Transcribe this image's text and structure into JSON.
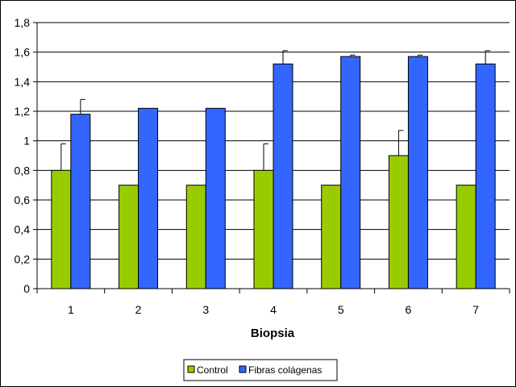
{
  "chart_data": {
    "type": "bar",
    "title": "",
    "xlabel": "Biopsia",
    "ylabel": "",
    "ylim": [
      0,
      1.8
    ],
    "yticks": [
      "0",
      "0,2",
      "0,4",
      "0,6",
      "0,8",
      "1",
      "1,2",
      "1,4",
      "1,6",
      "1,8"
    ],
    "categories": [
      "1",
      "2",
      "3",
      "4",
      "5",
      "6",
      "7"
    ],
    "series": [
      {
        "name": "Control",
        "color": "#99cc00",
        "values": [
          0.8,
          0.7,
          0.7,
          0.8,
          0.7,
          0.9,
          0.7
        ],
        "errors": [
          0.18,
          0,
          0,
          0.18,
          0,
          0.17,
          0
        ]
      },
      {
        "name": "Fibras colágenas",
        "color": "#3366ff",
        "values": [
          1.18,
          1.22,
          1.22,
          1.52,
          1.57,
          1.57,
          1.52
        ],
        "errors": [
          0.1,
          0,
          0,
          0.09,
          0.01,
          0.01,
          0.09
        ]
      }
    ],
    "grid": true,
    "legend_position": "bottom"
  }
}
